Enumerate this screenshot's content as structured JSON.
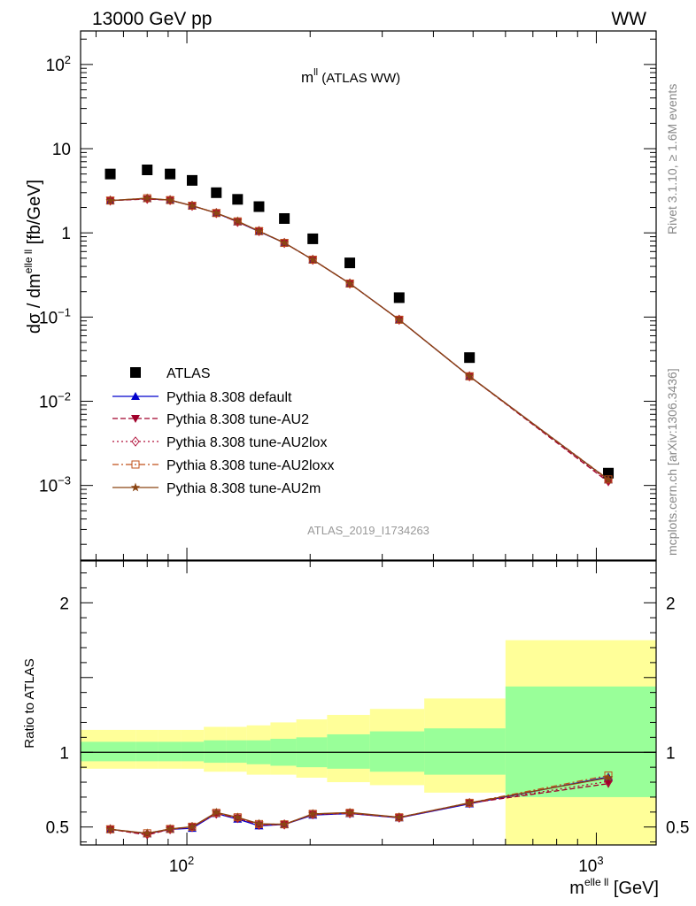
{
  "header": {
    "left": "13000 GeV pp",
    "right": "WW"
  },
  "side_text": {
    "rivet": "Rivet 3.1.10, ≥ 1.6M events",
    "mcplots": "mcplots.cern.ch [arXiv:1306.3436]"
  },
  "analysis_tag": "ATLAS_2019_I1734263",
  "chart_data": [
    {
      "type": "scatter",
      "panel": "main",
      "title_main": "m",
      "title_sup": "ll",
      "title_rest": " (ATLAS WW)",
      "ylabel_prefix": "dσ / dm",
      "ylabel_sup": "elle ll",
      "ylabel_suffix": " [fb/GeV]",
      "yscale": "log",
      "xscale": "log",
      "xlim": [
        55,
        1400
      ],
      "ylim": [
        0.00013,
        250
      ],
      "ytick_labels": [
        {
          "value": 100,
          "base": "10",
          "exp": "2"
        },
        {
          "value": 10,
          "base": "10",
          "exp": ""
        },
        {
          "value": 1,
          "base": "1",
          "exp": ""
        },
        {
          "value": 0.1,
          "base": "10",
          "exp": "−1"
        },
        {
          "value": 0.01,
          "base": "10",
          "exp": "−2"
        },
        {
          "value": 0.001,
          "base": "10",
          "exp": "−3"
        }
      ],
      "x": [
        65,
        80,
        91,
        103,
        118,
        133,
        150,
        173,
        203,
        250,
        330,
        490,
        1070
      ],
      "x_edges": [
        55,
        75,
        85,
        97,
        110,
        125,
        140,
        160,
        185,
        220,
        280,
        380,
        600,
        1400
      ],
      "series": [
        {
          "name": "ATLAS",
          "color": "#000000",
          "marker": "square",
          "style": "none",
          "values": [
            5.0,
            5.6,
            5.0,
            4.2,
            3.0,
            2.5,
            2.05,
            1.48,
            0.85,
            0.44,
            0.17,
            0.033,
            0.0014
          ]
        },
        {
          "name": "Pythia 8.308 default",
          "color": "#0000cc",
          "marker": "triangle-up",
          "style": "solid",
          "values": [
            2.42,
            2.55,
            2.45,
            2.1,
            1.72,
            1.35,
            1.04,
            0.76,
            0.48,
            0.25,
            0.093,
            0.0198,
            0.00117
          ]
        },
        {
          "name": "Pythia 8.308 tune-AU2",
          "color": "#a0002a",
          "marker": "triangle-down",
          "style": "dashed",
          "values": [
            2.42,
            2.52,
            2.45,
            2.1,
            1.72,
            1.35,
            1.05,
            0.76,
            0.48,
            0.25,
            0.093,
            0.0198,
            0.0011
          ]
        },
        {
          "name": "Pythia 8.308 tune-AU2lox",
          "color": "#b0103a",
          "marker": "diamond-open",
          "style": "dotted",
          "values": [
            2.42,
            2.54,
            2.45,
            2.1,
            1.72,
            1.35,
            1.05,
            0.76,
            0.48,
            0.25,
            0.093,
            0.0198,
            0.00113
          ]
        },
        {
          "name": "Pythia 8.308 tune-AU2loxx",
          "color": "#c0501a",
          "marker": "square-open",
          "style": "dashdot",
          "values": [
            2.42,
            2.58,
            2.45,
            2.1,
            1.72,
            1.37,
            1.05,
            0.76,
            0.48,
            0.25,
            0.093,
            0.0198,
            0.00118
          ]
        },
        {
          "name": "Pythia 8.308 tune-AU2m",
          "color": "#8b4513",
          "marker": "star",
          "style": "solid",
          "values": [
            2.42,
            2.58,
            2.45,
            2.1,
            1.72,
            1.38,
            1.05,
            0.76,
            0.48,
            0.25,
            0.093,
            0.0198,
            0.00117
          ]
        }
      ],
      "legend_placement": "bottom-left"
    },
    {
      "type": "line",
      "panel": "ratio",
      "ylabel": "Ratio to ATLAS",
      "xlabel_prefix": "m",
      "xlabel_sup": "elle ll",
      "xlabel_suffix": " [GeV]",
      "xscale": "log",
      "xlim": [
        55,
        1400
      ],
      "ylim": [
        0.38,
        2.28
      ],
      "ytick_labels": [
        "0.5",
        "1",
        "2"
      ],
      "ytick_values": [
        0.5,
        1,
        2
      ],
      "xtick_labels": [
        {
          "value": 100,
          "base": "10",
          "exp": "2"
        },
        {
          "value": 1000,
          "base": "10",
          "exp": "3"
        }
      ],
      "band_inner": [
        [
          0.94,
          1.07
        ],
        [
          0.94,
          1.07
        ],
        [
          0.94,
          1.07
        ],
        [
          0.94,
          1.07
        ],
        [
          0.93,
          1.08
        ],
        [
          0.93,
          1.08
        ],
        [
          0.92,
          1.08
        ],
        [
          0.91,
          1.09
        ],
        [
          0.9,
          1.1
        ],
        [
          0.89,
          1.12
        ],
        [
          0.87,
          1.14
        ],
        [
          0.85,
          1.16
        ],
        [
          0.7,
          1.44
        ]
      ],
      "band_outer": [
        [
          0.89,
          1.15
        ],
        [
          0.89,
          1.15
        ],
        [
          0.89,
          1.15
        ],
        [
          0.89,
          1.15
        ],
        [
          0.87,
          1.17
        ],
        [
          0.87,
          1.17
        ],
        [
          0.85,
          1.18
        ],
        [
          0.85,
          1.2
        ],
        [
          0.83,
          1.22
        ],
        [
          0.8,
          1.25
        ],
        [
          0.78,
          1.29
        ],
        [
          0.73,
          1.36
        ],
        [
          0.38,
          1.75
        ]
      ],
      "series": [
        {
          "name": "Pythia 8.308 default",
          "values": [
            0.485,
            0.455,
            0.485,
            0.492,
            0.59,
            0.553,
            0.508,
            0.517,
            0.58,
            0.59,
            0.562,
            0.655,
            0.835
          ]
        },
        {
          "name": "Pythia 8.308 tune-AU2",
          "values": [
            0.485,
            0.447,
            0.485,
            0.5,
            0.59,
            0.56,
            0.515,
            0.517,
            0.585,
            0.592,
            0.563,
            0.66,
            0.79
          ]
        },
        {
          "name": "Pythia 8.308 tune-AU2lox",
          "values": [
            0.485,
            0.452,
            0.485,
            0.5,
            0.59,
            0.56,
            0.515,
            0.517,
            0.585,
            0.592,
            0.563,
            0.66,
            0.805
          ]
        },
        {
          "name": "Pythia 8.308 tune-AU2loxx",
          "values": [
            0.485,
            0.458,
            0.487,
            0.502,
            0.595,
            0.565,
            0.52,
            0.518,
            0.588,
            0.595,
            0.565,
            0.662,
            0.845
          ]
        },
        {
          "name": "Pythia 8.308 tune-AU2m",
          "values": [
            0.485,
            0.458,
            0.487,
            0.502,
            0.598,
            0.565,
            0.522,
            0.518,
            0.588,
            0.597,
            0.565,
            0.662,
            0.83
          ]
        }
      ]
    }
  ]
}
